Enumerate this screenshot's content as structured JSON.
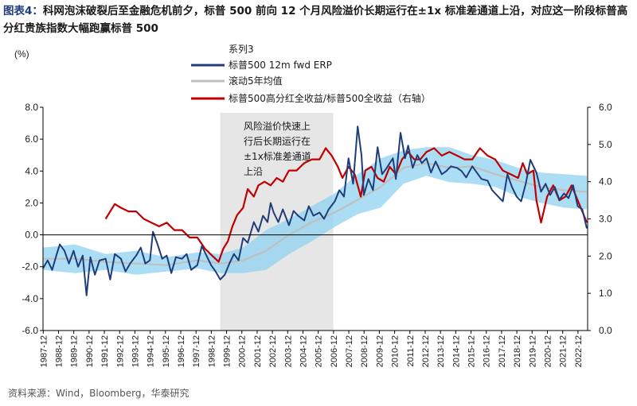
{
  "header": {
    "label": "图表4：",
    "text": "科网泡沫破裂后至金融危机前夕，标普 500 前向 12 个月风险溢价长期运行在±1x 标准差通道上沿，对应这一阶段标普高分红贵族指数大幅跑赢标普 500"
  },
  "source": "资料来源：Wind，Bloomberg，华泰研究",
  "colors": {
    "erp": "#1f3d7a",
    "avg": "#bfbfbf",
    "ratio": "#c00000",
    "band": "#8fd3f0",
    "shade": "#e6e6e6"
  },
  "chart_data": {
    "type": "line",
    "y_left_unit": "(%)",
    "ylim_left": [
      -6,
      8
    ],
    "ylim_right": [
      0,
      6
    ],
    "yticks_left": [
      "8.0",
      "6.0",
      "4.0",
      "2.0",
      "0.0",
      "-2.0",
      "-4.0",
      "-6.0"
    ],
    "yticks_right": [
      "6.0",
      "5.0",
      "4.0",
      "3.0",
      "2.0",
      "1.0",
      "0.0"
    ],
    "xtick_labels": [
      "1987-12",
      "1988-12",
      "1989-12",
      "1990-12",
      "1991-12",
      "1992-12",
      "1993-12",
      "1994-12",
      "1995-12",
      "1996-12",
      "1997-12",
      "1998-12",
      "1999-12",
      "2000-12",
      "2001-12",
      "2002-12",
      "2003-12",
      "2004-12",
      "2005-12",
      "2006-12",
      "2007-12",
      "2008-12",
      "2009-12",
      "2010-12",
      "2011-12",
      "2012-12",
      "2013-12",
      "2014-12",
      "2015-12",
      "2016-12",
      "2017-12",
      "2018-12",
      "2019-12",
      "2020-12",
      "2021-12",
      "2022-12"
    ],
    "x_range": [
      1987.9,
      2023.55
    ],
    "legend": [
      "系列3",
      "标普500 12m fwd ERP",
      "滚动5年均值",
      "标普500高分红全收益/标普500全收益（右轴）"
    ],
    "annotation": [
      "风险溢价快速上",
      "行后长期运行在",
      "±1x标准差通道",
      "上沿"
    ],
    "shaded_period": [
      1999.5,
      2006.9
    ],
    "series": [
      {
        "name": "标普500 12m fwd ERP",
        "axis": "left",
        "x": [
          1987.9,
          1988.2,
          1988.5,
          1988.8,
          1989.0,
          1989.3,
          1989.6,
          1989.9,
          1990.2,
          1990.5,
          1990.75,
          1991.0,
          1991.3,
          1991.6,
          1992.0,
          1992.3,
          1992.6,
          1993.0,
          1993.3,
          1993.6,
          1994.0,
          1994.3,
          1994.6,
          1994.9,
          1995.1,
          1995.4,
          1995.7,
          1996.0,
          1996.3,
          1996.6,
          1997.0,
          1997.3,
          1997.6,
          1998.0,
          1998.3,
          1998.6,
          1998.9,
          1999.2,
          1999.5,
          1999.8,
          2000.1,
          2000.4,
          2000.7,
          2001.0,
          2001.3,
          2001.7,
          2002.0,
          2002.3,
          2002.6,
          2002.8,
          2003.0,
          2003.3,
          2003.6,
          2004.0,
          2004.3,
          2004.6,
          2005.0,
          2005.3,
          2005.6,
          2006.0,
          2006.3,
          2006.6,
          2007.0,
          2007.3,
          2007.6,
          2007.9,
          2008.2,
          2008.5,
          2008.75,
          2008.9,
          2009.2,
          2009.5,
          2009.8,
          2010.1,
          2010.4,
          2010.8,
          2011.0,
          2011.3,
          2011.6,
          2011.8,
          2012.1,
          2012.4,
          2012.7,
          2013.0,
          2013.3,
          2013.6,
          2014.0,
          2014.3,
          2014.6,
          2015.0,
          2015.3,
          2015.6,
          2016.0,
          2016.3,
          2016.6,
          2017.0,
          2017.3,
          2017.6,
          2018.0,
          2018.3,
          2018.6,
          2018.9,
          2019.2,
          2019.5,
          2019.8,
          2020.2,
          2020.5,
          2020.8,
          2021.1,
          2021.4,
          2021.7,
          2022.0,
          2022.3,
          2022.6,
          2022.9,
          2023.2,
          2023.5
        ],
        "y": [
          -2.1,
          -1.6,
          -2.2,
          -1.2,
          -0.6,
          -1.0,
          -1.8,
          -1.0,
          -2.0,
          -1.3,
          -3.8,
          -1.4,
          -2.5,
          -1.6,
          -1.5,
          -2.8,
          -1.2,
          -1.5,
          -2.3,
          -1.8,
          -1.3,
          -0.8,
          -1.8,
          -1.6,
          0.2,
          -0.6,
          -1.5,
          -1.3,
          -2.4,
          -1.4,
          -1.5,
          -1.2,
          -2.2,
          -1.9,
          -0.7,
          -1.3,
          -1.9,
          -2.3,
          -2.8,
          -2.5,
          -1.8,
          -1.2,
          -1.6,
          -0.2,
          -0.5,
          0.8,
          0.2,
          1.2,
          0.8,
          2.0,
          1.4,
          0.8,
          1.6,
          0.6,
          1.5,
          1.2,
          0.9,
          1.8,
          1.2,
          1.4,
          1.0,
          1.6,
          2.1,
          2.8,
          2.4,
          4.8,
          3.2,
          6.8,
          5.0,
          2.5,
          3.5,
          2.8,
          5.5,
          3.8,
          4.2,
          4.8,
          3.5,
          6.4,
          4.8,
          5.6,
          4.2,
          5.0,
          4.5,
          4.8,
          3.9,
          4.6,
          3.8,
          4.0,
          4.3,
          4.2,
          4.0,
          3.6,
          4.3,
          3.9,
          3.5,
          3.4,
          2.8,
          2.5,
          2.1,
          3.8,
          3.0,
          2.4,
          2.1,
          3.2,
          4.7,
          3.9,
          2.7,
          3.2,
          2.5,
          3.0,
          2.2,
          2.6,
          2.3,
          3.1,
          1.8,
          1.6,
          0.4
        ]
      },
      {
        "name": "滚动5年均值",
        "axis": "left",
        "x": [
          1987.9,
          1990.0,
          1992.0,
          1994.0,
          1996.0,
          1998.0,
          1999.5,
          2001.0,
          2002.5,
          2004.0,
          2005.5,
          2007.0,
          2008.5,
          2010.0,
          2011.5,
          2013.0,
          2014.5,
          2016.0,
          2017.5,
          2019.0,
          2020.5,
          2022.0,
          2023.5
        ],
        "y": [
          -1.5,
          -1.5,
          -1.7,
          -1.8,
          -1.9,
          -1.6,
          -1.8,
          -1.6,
          -1.0,
          0.0,
          0.8,
          1.4,
          2.2,
          3.0,
          4.2,
          4.5,
          4.2,
          4.3,
          3.8,
          3.4,
          3.0,
          2.8,
          2.7
        ]
      },
      {
        "name": "系列3",
        "axis": "left",
        "band": true,
        "x": [
          1987.9,
          1990.0,
          1992.0,
          1994.0,
          1996.0,
          1998.0,
          1999.5,
          2001.0,
          2002.5,
          2004.0,
          2005.5,
          2007.0,
          2008.5,
          2010.0,
          2011.5,
          2013.0,
          2014.5,
          2016.0,
          2017.5,
          2019.0,
          2020.5,
          2022.0,
          2023.5
        ],
        "upper": [
          -0.8,
          -0.6,
          -1.2,
          -1.0,
          -1.4,
          -1.1,
          -1.2,
          -0.8,
          0.3,
          1.0,
          1.8,
          2.6,
          3.8,
          4.8,
          5.3,
          5.5,
          5.5,
          5.0,
          4.7,
          4.2,
          3.9,
          3.8,
          3.7
        ],
        "lower": [
          -2.2,
          -2.4,
          -2.2,
          -2.5,
          -2.3,
          -2.1,
          -2.4,
          -2.4,
          -2.2,
          -1.2,
          -0.4,
          0.5,
          1.3,
          1.7,
          3.2,
          3.7,
          3.3,
          3.2,
          3.0,
          2.4,
          2.0,
          1.7,
          1.6
        ]
      },
      {
        "name": "标普500高分红全收益/标普500全收益（右轴）",
        "axis": "right",
        "x": [
          1992.0,
          1992.3,
          1992.6,
          1993.0,
          1993.5,
          1994.0,
          1994.5,
          1995.0,
          1995.5,
          1996.0,
          1996.5,
          1997.0,
          1997.5,
          1998.0,
          1998.5,
          1999.0,
          1999.4,
          1999.7,
          2000.0,
          2000.3,
          2000.6,
          2001.0,
          2001.3,
          2001.7,
          2002.0,
          2002.4,
          2002.8,
          2003.2,
          2003.6,
          2004.0,
          2004.5,
          2005.0,
          2005.5,
          2006.0,
          2006.4,
          2006.8,
          2007.2,
          2007.5,
          2007.9,
          2008.3,
          2008.7,
          2009.0,
          2009.4,
          2009.8,
          2010.2,
          2010.6,
          2011.0,
          2011.4,
          2011.8,
          2012.2,
          2012.6,
          2013.0,
          2013.5,
          2014.0,
          2014.5,
          2015.0,
          2015.5,
          2016.0,
          2016.5,
          2017.0,
          2017.5,
          2018.0,
          2018.5,
          2019.0,
          2019.3,
          2019.6,
          2020.0,
          2020.2,
          2020.5,
          2020.9,
          2021.3,
          2021.7,
          2022.1,
          2022.5,
          2022.9,
          2023.2,
          2023.5
        ],
        "y": [
          3.0,
          3.2,
          3.4,
          3.3,
          3.2,
          3.2,
          3.0,
          2.9,
          2.8,
          2.9,
          2.7,
          2.7,
          2.5,
          2.5,
          2.2,
          2.0,
          1.85,
          2.2,
          2.4,
          2.8,
          3.1,
          3.3,
          3.8,
          3.6,
          3.9,
          4.0,
          3.9,
          4.1,
          4.0,
          4.3,
          4.3,
          4.5,
          4.6,
          4.6,
          4.9,
          4.7,
          4.4,
          4.1,
          4.4,
          4.2,
          3.6,
          4.3,
          4.4,
          4.1,
          4.0,
          4.4,
          4.2,
          4.6,
          4.8,
          4.6,
          4.6,
          4.8,
          4.9,
          4.7,
          4.8,
          4.7,
          4.6,
          4.6,
          4.9,
          4.7,
          4.6,
          4.3,
          4.2,
          4.1,
          4.5,
          4.2,
          4.3,
          3.5,
          2.9,
          3.6,
          3.9,
          3.5,
          3.6,
          3.9,
          3.5,
          3.2,
          2.9
        ]
      }
    ]
  }
}
